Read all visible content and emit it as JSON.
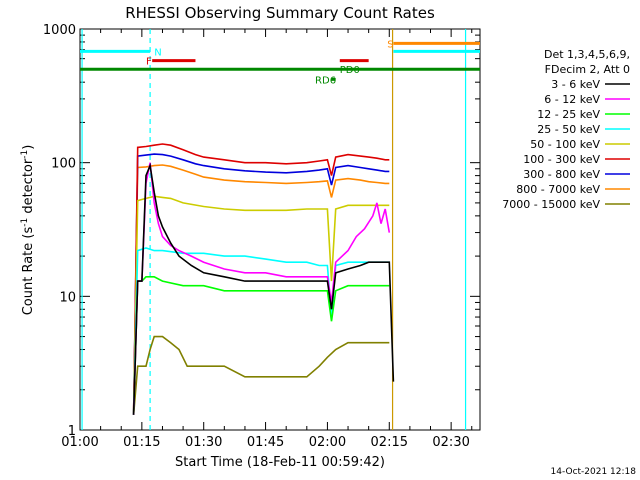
{
  "chart_data": {
    "type": "line",
    "title": "RHESSI Observing Summary Count Rates",
    "xlabel": "Start Time (18-Feb-11 00:59:42)",
    "ylabel_main": "Count Rate (s",
    "ylabel_sup1": "-1",
    "ylabel_mid": " detector",
    "ylabel_sup2": "-1",
    "ylabel_end": ")",
    "y_scale": "log",
    "ylim": [
      1,
      1000
    ],
    "xlim_minutes": [
      60,
      157
    ],
    "x_ticks": [
      {
        "min": 60,
        "label": "01:00"
      },
      {
        "min": 75,
        "label": "01:15"
      },
      {
        "min": 90,
        "label": "01:30"
      },
      {
        "min": 105,
        "label": "01:45"
      },
      {
        "min": 120,
        "label": "02:00"
      },
      {
        "min": 135,
        "label": "02:15"
      },
      {
        "min": 150,
        "label": "02:30"
      }
    ],
    "y_ticks": [
      {
        "value": 1,
        "label": "1"
      },
      {
        "value": 10,
        "label": "10"
      },
      {
        "value": 100,
        "label": "100"
      },
      {
        "value": 1000,
        "label": "1000"
      }
    ],
    "legend_header": [
      "Det 1,3,4,5,6,9,",
      "FDecim 2, Att 0"
    ],
    "legend_placement": "right",
    "series": [
      {
        "name": "3 - 6 keV",
        "color": "#000000",
        "points": [
          [
            73,
            1.3
          ],
          [
            74,
            13
          ],
          [
            75,
            13
          ],
          [
            76,
            80
          ],
          [
            77,
            95
          ],
          [
            78,
            60
          ],
          [
            79,
            40
          ],
          [
            80,
            33
          ],
          [
            82,
            25
          ],
          [
            84,
            20
          ],
          [
            87,
            17
          ],
          [
            90,
            15
          ],
          [
            95,
            14
          ],
          [
            100,
            13
          ],
          [
            105,
            13
          ],
          [
            110,
            13
          ],
          [
            115,
            13
          ],
          [
            118,
            13
          ],
          [
            120,
            13
          ],
          [
            121,
            8
          ],
          [
            122,
            15
          ],
          [
            125,
            16
          ],
          [
            128,
            17
          ],
          [
            130,
            18
          ],
          [
            132,
            18
          ],
          [
            134,
            18
          ],
          [
            135,
            18
          ],
          [
            136,
            2.3
          ]
        ]
      },
      {
        "name": "6 - 12 keV",
        "color": "#ff00ff",
        "points": [
          [
            73,
            1.3
          ],
          [
            74,
            13
          ],
          [
            75,
            13
          ],
          [
            76,
            70
          ],
          [
            77,
            100
          ],
          [
            78,
            50
          ],
          [
            79,
            35
          ],
          [
            80,
            28
          ],
          [
            82,
            24
          ],
          [
            84,
            22
          ],
          [
            87,
            20
          ],
          [
            90,
            18
          ],
          [
            95,
            16
          ],
          [
            100,
            15
          ],
          [
            105,
            15
          ],
          [
            110,
            14
          ],
          [
            115,
            14
          ],
          [
            118,
            14
          ],
          [
            120,
            14
          ],
          [
            121,
            9
          ],
          [
            122,
            18
          ],
          [
            125,
            22
          ],
          [
            127,
            28
          ],
          [
            129,
            32
          ],
          [
            131,
            40
          ],
          [
            132,
            50
          ],
          [
            133,
            35
          ],
          [
            134,
            45
          ],
          [
            135,
            30
          ]
        ]
      },
      {
        "name": "12 - 25 keV",
        "color": "#00ff00",
        "points": [
          [
            73,
            1.3
          ],
          [
            74,
            13
          ],
          [
            75,
            13
          ],
          [
            76,
            14
          ],
          [
            78,
            14
          ],
          [
            80,
            13
          ],
          [
            85,
            12
          ],
          [
            90,
            12
          ],
          [
            95,
            11
          ],
          [
            100,
            11
          ],
          [
            105,
            11
          ],
          [
            110,
            11
          ],
          [
            115,
            11
          ],
          [
            118,
            11
          ],
          [
            120,
            11
          ],
          [
            121,
            6.5
          ],
          [
            122,
            11
          ],
          [
            125,
            12
          ],
          [
            128,
            12
          ],
          [
            130,
            12
          ],
          [
            132,
            12
          ],
          [
            134,
            12
          ],
          [
            135,
            12
          ]
        ]
      },
      {
        "name": "25 - 50 keV",
        "color": "#00ffff",
        "points": [
          [
            73,
            1.3
          ],
          [
            74,
            22
          ],
          [
            76,
            23
          ],
          [
            78,
            22
          ],
          [
            80,
            22
          ],
          [
            85,
            21
          ],
          [
            90,
            21
          ],
          [
            95,
            20
          ],
          [
            100,
            20
          ],
          [
            105,
            19
          ],
          [
            110,
            18
          ],
          [
            115,
            18
          ],
          [
            118,
            17
          ],
          [
            120,
            17
          ],
          [
            121,
            7
          ],
          [
            122,
            17
          ],
          [
            125,
            18
          ],
          [
            128,
            18
          ],
          [
            130,
            18
          ],
          [
            132,
            18
          ],
          [
            134,
            18
          ],
          [
            135,
            18
          ]
        ]
      },
      {
        "name": "50 - 100 keV",
        "color": "#cccc00",
        "points": [
          [
            73,
            1.3
          ],
          [
            74,
            52
          ],
          [
            76,
            54
          ],
          [
            78,
            56
          ],
          [
            80,
            55
          ],
          [
            82,
            54
          ],
          [
            85,
            50
          ],
          [
            90,
            47
          ],
          [
            95,
            45
          ],
          [
            100,
            44
          ],
          [
            105,
            44
          ],
          [
            110,
            44
          ],
          [
            115,
            45
          ],
          [
            118,
            45
          ],
          [
            120,
            45
          ],
          [
            121,
            13
          ],
          [
            122,
            45
          ],
          [
            125,
            48
          ],
          [
            128,
            48
          ],
          [
            130,
            48
          ],
          [
            132,
            48
          ],
          [
            134,
            48
          ],
          [
            135,
            48
          ]
        ]
      },
      {
        "name": "100 - 300 keV",
        "color": "#dd0000",
        "points": [
          [
            73,
            1.3
          ],
          [
            74,
            130
          ],
          [
            76,
            132
          ],
          [
            78,
            135
          ],
          [
            80,
            138
          ],
          [
            82,
            135
          ],
          [
            85,
            125
          ],
          [
            88,
            115
          ],
          [
            90,
            110
          ],
          [
            95,
            105
          ],
          [
            100,
            100
          ],
          [
            105,
            100
          ],
          [
            110,
            98
          ],
          [
            115,
            100
          ],
          [
            118,
            103
          ],
          [
            120,
            105
          ],
          [
            121,
            80
          ],
          [
            122,
            110
          ],
          [
            125,
            115
          ],
          [
            128,
            112
          ],
          [
            130,
            110
          ],
          [
            132,
            108
          ],
          [
            134,
            105
          ],
          [
            135,
            105
          ]
        ]
      },
      {
        "name": "300 - 800 keV",
        "color": "#0000dd",
        "points": [
          [
            73,
            1.3
          ],
          [
            74,
            112
          ],
          [
            76,
            114
          ],
          [
            78,
            116
          ],
          [
            80,
            115
          ],
          [
            82,
            112
          ],
          [
            85,
            105
          ],
          [
            88,
            98
          ],
          [
            90,
            95
          ],
          [
            95,
            90
          ],
          [
            100,
            87
          ],
          [
            105,
            85
          ],
          [
            110,
            84
          ],
          [
            115,
            86
          ],
          [
            118,
            88
          ],
          [
            120,
            90
          ],
          [
            121,
            68
          ],
          [
            122,
            92
          ],
          [
            125,
            95
          ],
          [
            128,
            92
          ],
          [
            130,
            90
          ],
          [
            132,
            88
          ],
          [
            134,
            86
          ],
          [
            135,
            86
          ]
        ]
      },
      {
        "name": "800 - 7000 keV",
        "color": "#ff8800",
        "points": [
          [
            73,
            1.3
          ],
          [
            74,
            92
          ],
          [
            76,
            93
          ],
          [
            78,
            95
          ],
          [
            80,
            96
          ],
          [
            82,
            94
          ],
          [
            85,
            88
          ],
          [
            88,
            82
          ],
          [
            90,
            78
          ],
          [
            95,
            74
          ],
          [
            100,
            72
          ],
          [
            105,
            71
          ],
          [
            110,
            70
          ],
          [
            115,
            71
          ],
          [
            118,
            72
          ],
          [
            120,
            73
          ],
          [
            121,
            55
          ],
          [
            122,
            74
          ],
          [
            125,
            76
          ],
          [
            128,
            74
          ],
          [
            130,
            72
          ],
          [
            132,
            71
          ],
          [
            134,
            70
          ],
          [
            135,
            70
          ]
        ]
      },
      {
        "name": "7000 - 15000 keV",
        "color": "#808000",
        "points": [
          [
            73,
            1.3
          ],
          [
            74,
            3
          ],
          [
            76,
            3
          ],
          [
            77,
            4
          ],
          [
            78,
            5
          ],
          [
            80,
            5
          ],
          [
            82,
            4.5
          ],
          [
            84,
            4
          ],
          [
            86,
            3
          ],
          [
            90,
            3
          ],
          [
            95,
            3
          ],
          [
            100,
            2.5
          ],
          [
            105,
            2.5
          ],
          [
            110,
            2.5
          ],
          [
            115,
            2.5
          ],
          [
            118,
            3
          ],
          [
            120,
            3.5
          ],
          [
            122,
            4
          ],
          [
            125,
            4.5
          ],
          [
            128,
            4.5
          ],
          [
            130,
            4.5
          ],
          [
            132,
            4.5
          ],
          [
            134,
            4.5
          ],
          [
            135,
            4.5
          ]
        ]
      }
    ],
    "vertical_lines": [
      {
        "min": 60.5,
        "color": "#00ffff",
        "style": "solid"
      },
      {
        "min": 77,
        "color": "#00ffff",
        "style": "dashed"
      },
      {
        "min": 135.8,
        "color": "#cc9900",
        "style": "solid"
      },
      {
        "min": 153.5,
        "color": "#00ffff",
        "style": "solid"
      }
    ],
    "flag_bars": [
      {
        "label": "N",
        "color": "#00ffff",
        "x0": 60,
        "x1": 77,
        "value": 680,
        "label_min": 78,
        "label_color": "#00ffff"
      },
      {
        "label": "S",
        "color": "#ff8800",
        "x0": 136,
        "x1": 157,
        "value": 780,
        "label_min": 134.5,
        "label_color": "#ff8800"
      },
      {
        "label": "",
        "color": "#00ffff",
        "x0": 136,
        "x1": 157,
        "value": 680,
        "label_min": 0,
        "label_color": "#00ffff"
      },
      {
        "label": "F",
        "color": "#dd0000",
        "x0": 77.5,
        "x1": 88,
        "value": 580,
        "label_min": 76,
        "label_color": "#dd0000"
      },
      {
        "label": "",
        "color": "#dd0000",
        "x0": 123,
        "x1": 130,
        "value": 580,
        "label_min": 0,
        "label_color": "#dd0000"
      },
      {
        "label": "PD0",
        "color": "#008800",
        "x0": 60,
        "x1": 157,
        "value": 500,
        "label_min": 123,
        "label_color": "#008800"
      },
      {
        "label": "RD6",
        "color": "#008800",
        "x0": 121,
        "x1": 122,
        "value": 420,
        "label_min": 117,
        "label_color": "#008800"
      }
    ]
  },
  "footer_date": "14-Oct-2021 12:18"
}
